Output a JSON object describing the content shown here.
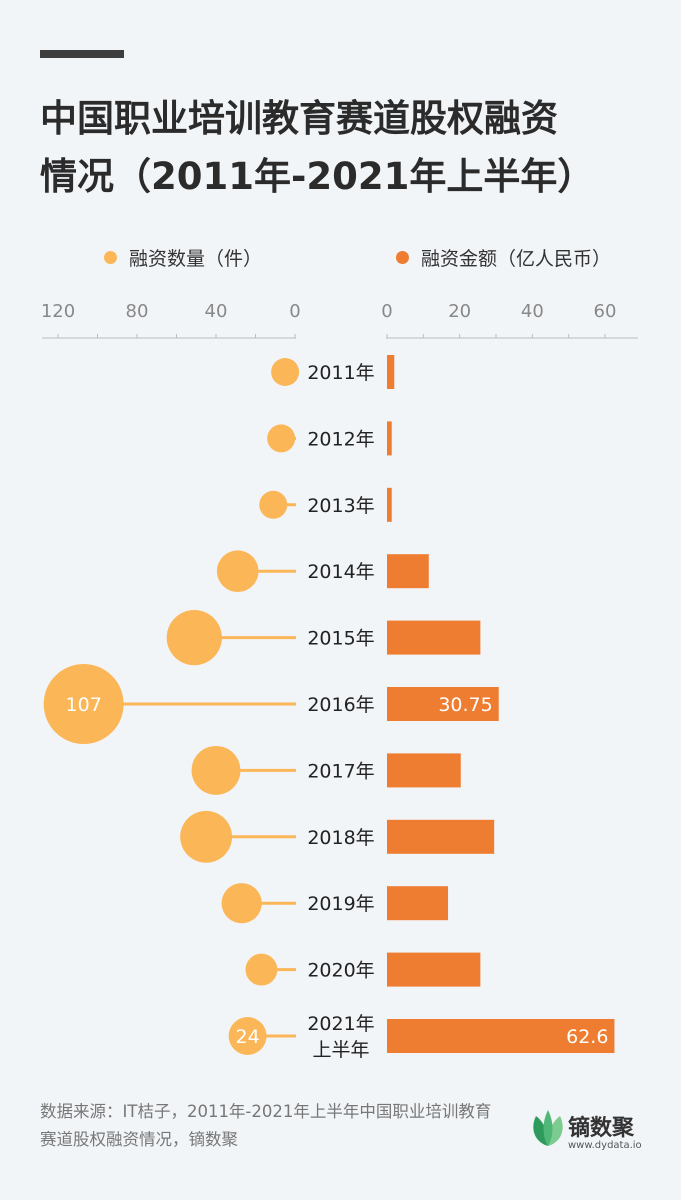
{
  "header": {
    "title_line1": "中国职业培训教育赛道股权融资",
    "title_line2": "情况（2011年-2021年上半年）"
  },
  "chart_data": {
    "type": "bar",
    "categories": [
      "2011年",
      "2012年",
      "2013年",
      "2014年",
      "2015年",
      "2016年",
      "2017年",
      "2018年",
      "2019年",
      "2020年",
      "2021年上半年"
    ],
    "category_lines": [
      [
        "2011年"
      ],
      [
        "2012年"
      ],
      [
        "2013年"
      ],
      [
        "2014年"
      ],
      [
        "2015年"
      ],
      [
        "2016年"
      ],
      [
        "2017年"
      ],
      [
        "2018年"
      ],
      [
        "2019年"
      ],
      [
        "2020年"
      ],
      [
        "2021年",
        "上半年"
      ]
    ],
    "series": [
      {
        "name": "融资数量（件）",
        "chart_kind": "bubble",
        "color": "#fbb658",
        "values": [
          5,
          7,
          11,
          29,
          51,
          107,
          40,
          45,
          27,
          17,
          24
        ],
        "labels": [
          "",
          "",
          "",
          "",
          "",
          "107",
          "",
          "",
          "",
          "",
          "24"
        ],
        "xlim": [
          0,
          120
        ],
        "axis_reversed": true,
        "ticks": [
          "120",
          "80",
          "40",
          "0"
        ],
        "tick_values": [
          120,
          80,
          40,
          0
        ]
      },
      {
        "name": "融资金额（亿人民币）",
        "chart_kind": "bar",
        "color": "#ef7d31",
        "values": [
          2,
          1.3,
          1.3,
          11.5,
          25.7,
          30.75,
          20.3,
          29.5,
          16.8,
          25.7,
          62.6
        ],
        "labels": [
          "",
          "",
          "",
          "",
          "",
          "30.75",
          "",
          "",
          "",
          "",
          "62.6"
        ],
        "xlim": [
          0,
          60
        ],
        "ticks": [
          "0",
          "20",
          "40",
          "60"
        ],
        "tick_values": [
          0,
          20,
          40,
          60
        ]
      }
    ]
  },
  "footer": {
    "source": "数据来源：IT桔子，2011年-2021年上半年中国职业培训教育赛道股权融资情况，镝数聚",
    "logo_name": "镝数聚",
    "logo_url": "www.dydata.io"
  }
}
